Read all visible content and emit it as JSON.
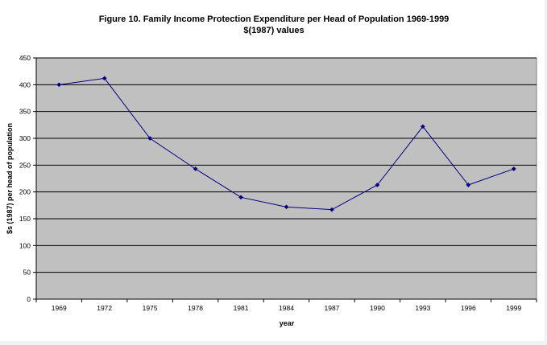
{
  "chart_data": {
    "type": "line",
    "title": "Figure 10.  Family Income Protection Expenditure per Head of Population  1969-1999",
    "subtitle": "$(1987) values",
    "xlabel": "year",
    "ylabel": "$s (1987) per head of population",
    "categories": [
      "1969",
      "1972",
      "1975",
      "1978",
      "1981",
      "1984",
      "1987",
      "1990",
      "1993",
      "1996",
      "1999"
    ],
    "yticks": [
      "0",
      "50",
      "100",
      "150",
      "200",
      "250",
      "300",
      "350",
      "400",
      "450"
    ],
    "ylim": [
      0,
      450
    ],
    "grid": "horizontal",
    "legend": "none",
    "series": [
      {
        "values": [
          400,
          412,
          300,
          243,
          190,
          172,
          167,
          213,
          322,
          213,
          243
        ]
      }
    ],
    "colors": {
      "plot_background": "#c0c0c0",
      "gridline": "#000000",
      "series_line": "#000080",
      "marker": "#000080"
    }
  }
}
